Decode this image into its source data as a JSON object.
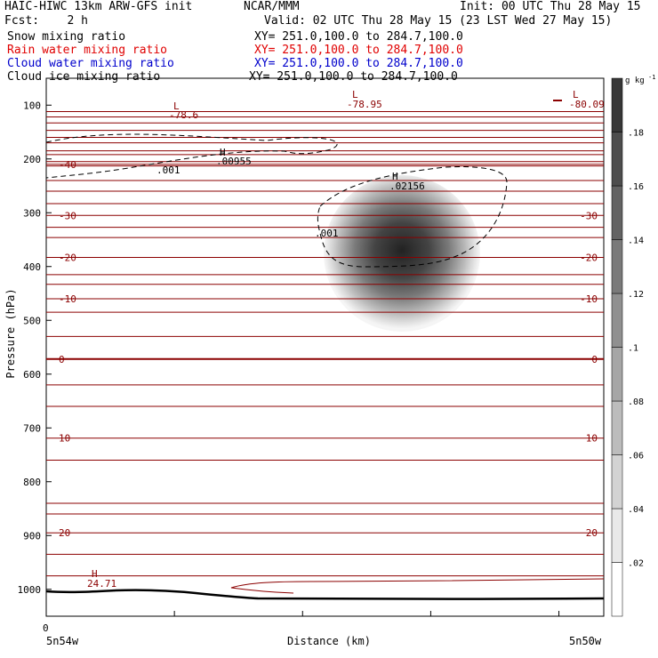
{
  "header": {
    "line1_left": "HAIC-HIWC 13km ARW-GFS init",
    "line1_mid": "NCAR/MMM",
    "line1_right": "Init: 00 UTC Thu 28 May 15",
    "line2_left": "Fcst:    2 h",
    "line2_right": "Valid: 02 UTC Thu 28 May 15 (23 LST Wed 27 May 15)",
    "fields": [
      {
        "name": "Snow mixing ratio",
        "xy": "XY= 251.0,100.0 to 284.7,100.0",
        "color": "#000000"
      },
      {
        "name": "Rain water mixing ratio",
        "xy": "XY= 251.0,100.0 to 284.7,100.0",
        "color": "#e00000"
      },
      {
        "name": "Cloud water mixing ratio",
        "xy": "XY= 251.0,100.0 to 284.7,100.0",
        "color": "#0000cc"
      },
      {
        "name": "Cloud ice mixing ratio",
        "xy": "XY= 251.0,100.0 to 284.7,100.0",
        "color": "#000000"
      }
    ]
  },
  "chart_data": {
    "type": "heatmap",
    "xlabel": "Distance (km)",
    "ylabel": "Pressure (hPa)",
    "x_tick_first": "0",
    "x_left_label": "5n54w",
    "x_right_label": "5n50w",
    "y_ticks": [
      100,
      200,
      300,
      400,
      500,
      600,
      700,
      800,
      900,
      1000
    ],
    "ylim": [
      50,
      1050
    ],
    "colorbar": {
      "unit": "g kg",
      "unit_exp": "-1",
      "ticks": [
        ".02",
        ".04",
        ".06",
        ".08",
        ".1",
        ".12",
        ".14",
        ".16",
        ".18"
      ],
      "levels": 10
    },
    "temperature_isotherms_c": [
      {
        "label": "-40",
        "p": 210
      },
      {
        "label": "-30",
        "p": 305
      },
      {
        "label": "-20",
        "p": 383
      },
      {
        "label": "-10",
        "p": 460
      },
      {
        "label": "0",
        "p": 572
      },
      {
        "label": "10",
        "p": 719
      },
      {
        "label": "20",
        "p": 895
      }
    ],
    "extrema": [
      {
        "kind": "L",
        "value": "-78.6",
        "color": "#8b0000"
      },
      {
        "kind": "L",
        "value": "-78.95",
        "color": "#8b0000"
      },
      {
        "kind": "L",
        "value": "-80.09",
        "color": "#8b0000"
      },
      {
        "kind": "H",
        "value": ".00955",
        "color": "#000000"
      },
      {
        "kind": "H",
        "value": ".02156",
        "color": "#000000"
      },
      {
        "kind": "H",
        "value": "24.71",
        "color": "#8b0000"
      }
    ],
    "contour_labels": [
      ".001",
      ".001"
    ],
    "colors": {
      "isotherm": "#8b0000",
      "terrain": "#000000"
    }
  }
}
